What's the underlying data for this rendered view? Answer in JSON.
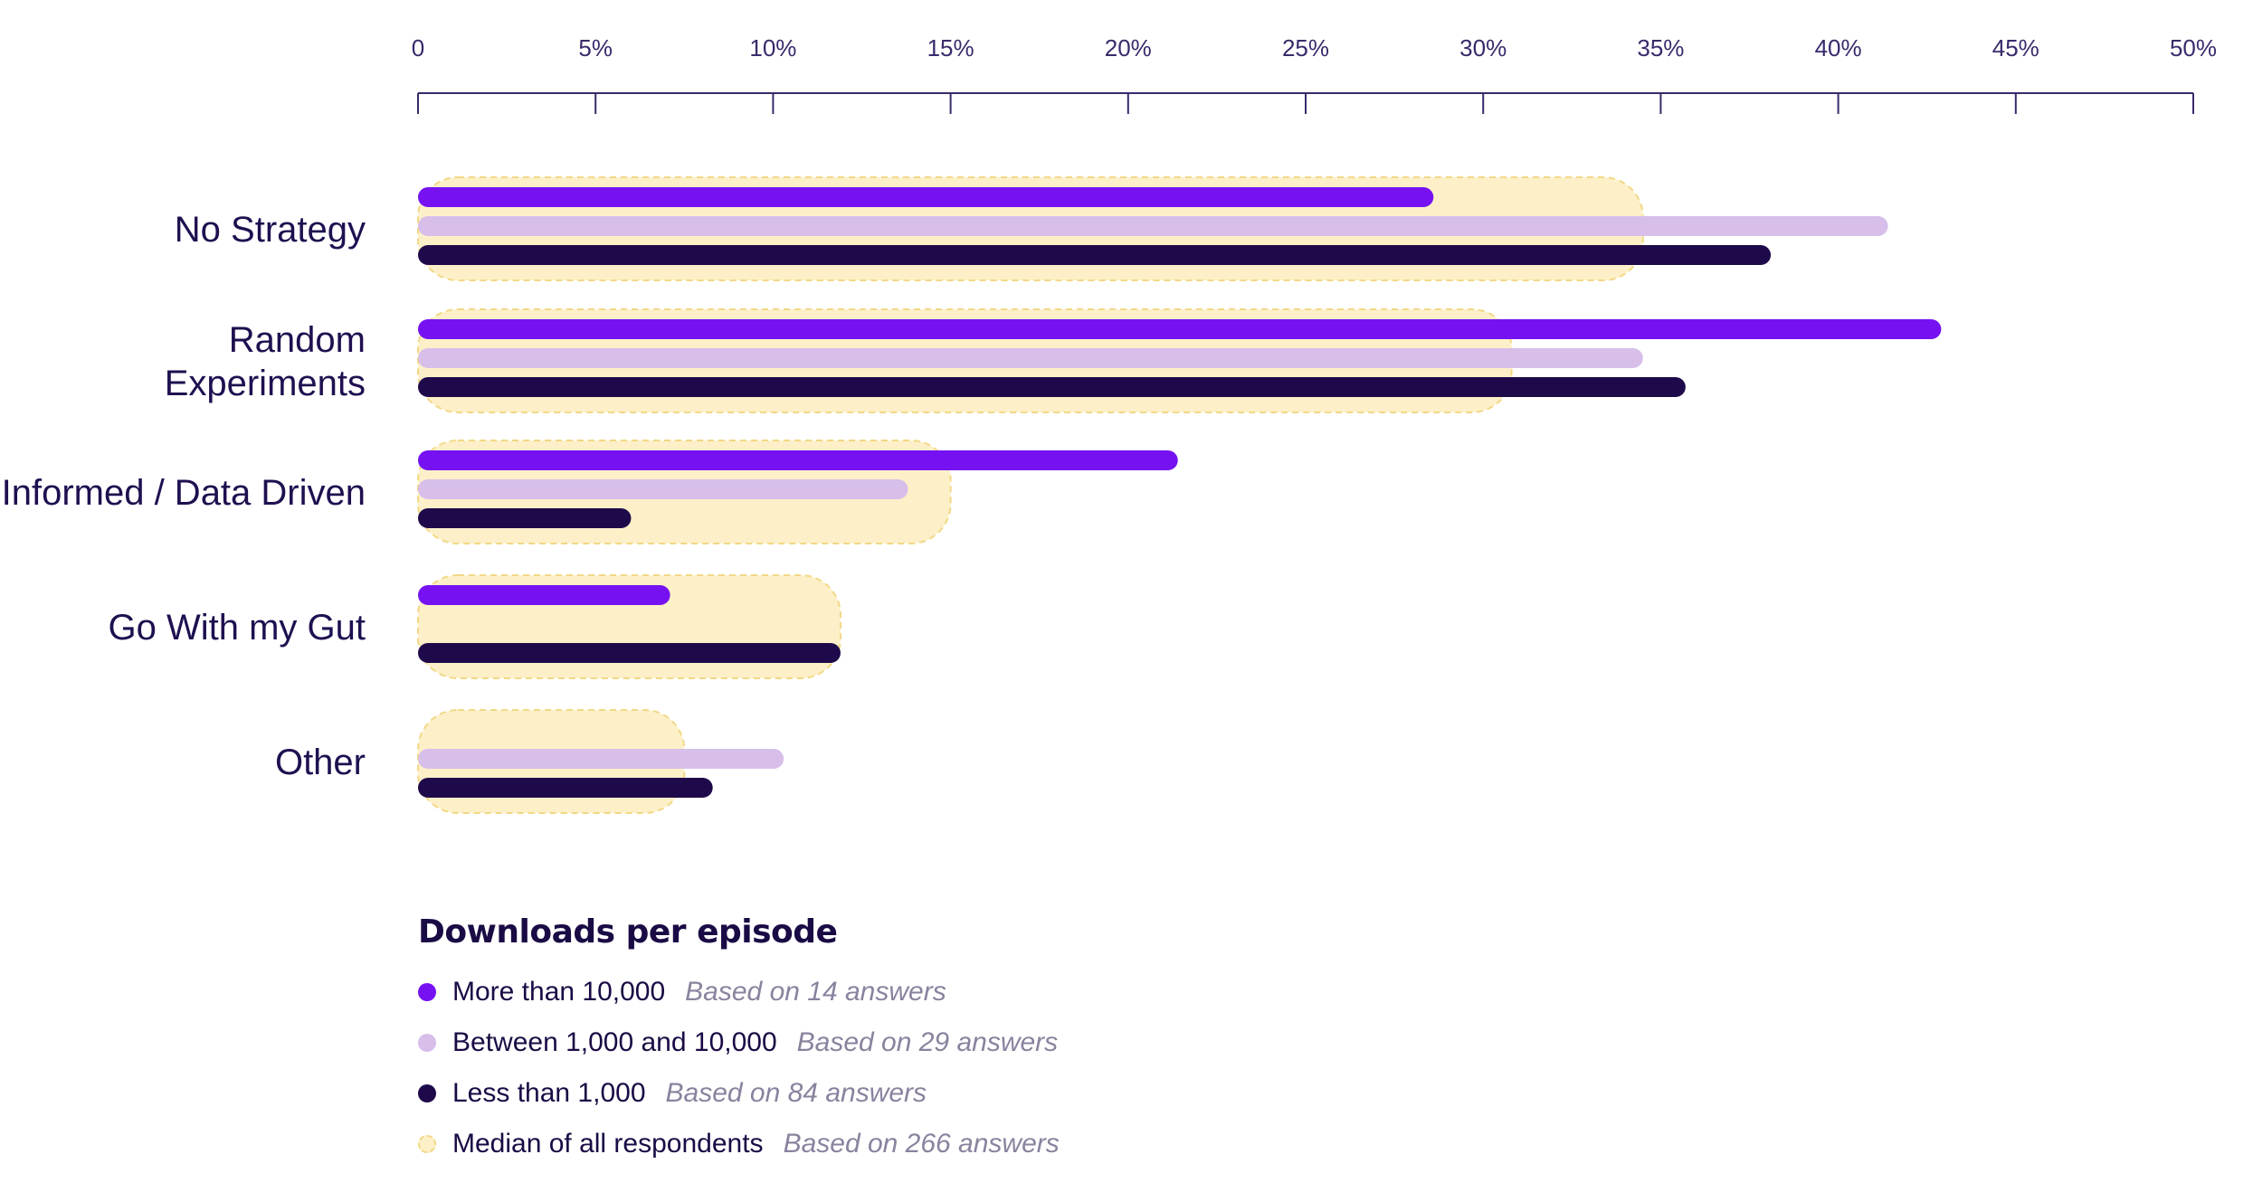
{
  "chart_data": {
    "type": "bar",
    "orientation": "horizontal",
    "x_ticks": [
      "0",
      "5%",
      "10%",
      "15%",
      "20%",
      "25%",
      "30%",
      "35%",
      "40%",
      "45%",
      "50%"
    ],
    "xlim": [
      0,
      50
    ],
    "categories": [
      "No Strategy",
      "Random Experiments",
      "Informed / Data Driven",
      "Go With my Gut",
      "Other"
    ],
    "category_lines": [
      [
        "No Strategy"
      ],
      [
        "Random",
        "Experiments"
      ],
      [
        "Informed / Data Driven"
      ],
      [
        "Go With my Gut"
      ],
      [
        "Other"
      ]
    ],
    "series": [
      {
        "name": "More than 10,000",
        "note": "Based on 14 answers",
        "color": "#7612f2",
        "values": [
          28.6,
          42.9,
          21.4,
          7.1,
          0
        ]
      },
      {
        "name": "Between 1,000 and 10,000",
        "note": "Based on 29 answers",
        "color": "#d7bfea",
        "values": [
          41.4,
          34.5,
          13.8,
          0,
          10.3
        ]
      },
      {
        "name": "Less than 1,000",
        "note": "Based on 84 answers",
        "color": "#1e0a4a",
        "values": [
          38.1,
          35.7,
          6.0,
          11.9,
          8.3
        ]
      }
    ],
    "median": {
      "name": "Median of all respondents",
      "note": "Based on 266 answers",
      "color": "#fdf0c8",
      "border": "#f2d886",
      "values": [
        34.5,
        30.8,
        15.0,
        11.9,
        7.5
      ]
    },
    "legend_title": "Downloads per episode",
    "legend_position": "bottom-left",
    "grid": false
  }
}
